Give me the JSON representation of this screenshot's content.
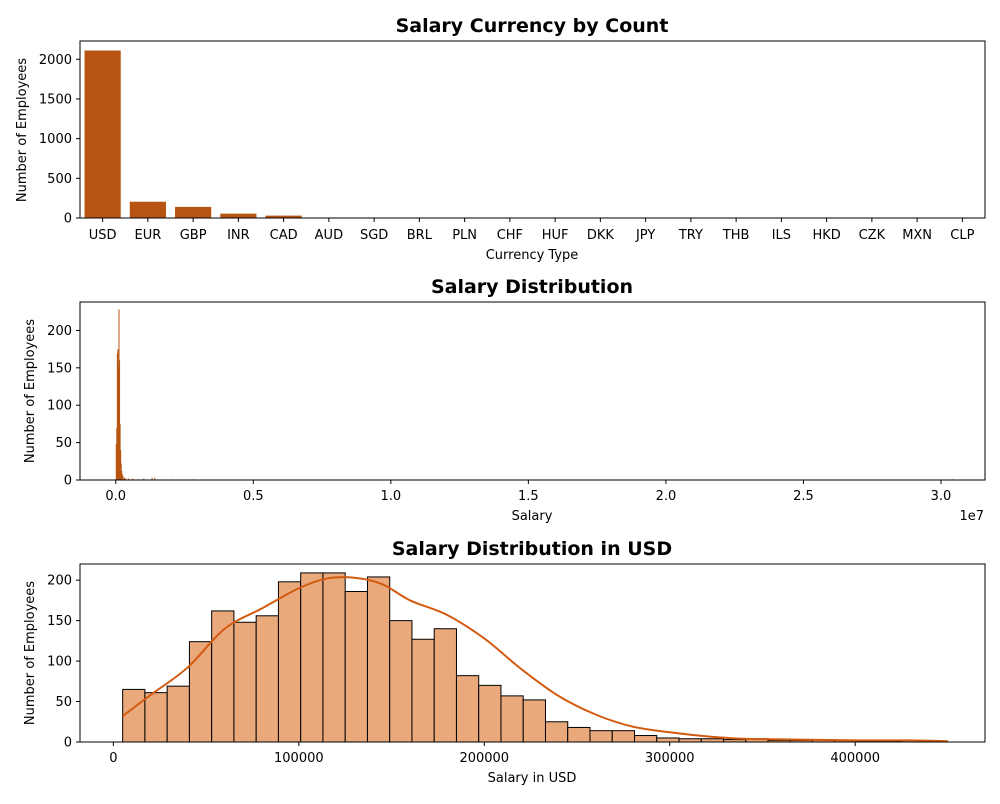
{
  "colors": {
    "bar": "#b85411",
    "hist_fill": "#e9a97b",
    "hist_edge": "#000000",
    "kde": "#d35b10",
    "axis": "#000000"
  },
  "chart_data": [
    {
      "type": "bar",
      "title": "Salary Currency by Count",
      "xlabel": "Currency Type",
      "ylabel": "Number of Employees",
      "categories": [
        "USD",
        "EUR",
        "GBP",
        "INR",
        "CAD",
        "AUD",
        "SGD",
        "BRL",
        "PLN",
        "CHF",
        "HUF",
        "DKK",
        "JPY",
        "TRY",
        "THB",
        "ILS",
        "HKD",
        "CZK",
        "MXN",
        "CLP"
      ],
      "values": [
        2110,
        205,
        140,
        55,
        30,
        5,
        4,
        3,
        3,
        2,
        2,
        2,
        1,
        1,
        1,
        1,
        1,
        1,
        1,
        1
      ],
      "ylim": [
        0,
        2230
      ],
      "yticks": [
        0,
        500,
        1000,
        1500,
        2000
      ],
      "grid": false
    },
    {
      "type": "bar",
      "title": "Salary Distribution",
      "xlabel": "Salary",
      "ylabel": "Number of Employees",
      "x_scale_label": "1e7",
      "xlim": [
        -1300000,
        31600000
      ],
      "ylim": [
        0,
        238
      ],
      "xticks": [
        0,
        5000000,
        10000000,
        15000000,
        20000000,
        25000000,
        30000000
      ],
      "xtick_labels": [
        "0.0",
        "0.5",
        "1.0",
        "1.5",
        "2.0",
        "2.5",
        "3.0"
      ],
      "yticks": [
        0,
        50,
        100,
        150,
        200
      ],
      "bins": [
        {
          "x": 0,
          "count": 48
        },
        {
          "x": 20000,
          "count": 70
        },
        {
          "x": 40000,
          "count": 170
        },
        {
          "x": 60000,
          "count": 175
        },
        {
          "x": 80000,
          "count": 150
        },
        {
          "x": 100000,
          "count": 228
        },
        {
          "x": 120000,
          "count": 160
        },
        {
          "x": 140000,
          "count": 75
        },
        {
          "x": 160000,
          "count": 40
        },
        {
          "x": 180000,
          "count": 22
        },
        {
          "x": 200000,
          "count": 12
        },
        {
          "x": 220000,
          "count": 8
        },
        {
          "x": 250000,
          "count": 5
        },
        {
          "x": 300000,
          "count": 3
        },
        {
          "x": 350000,
          "count": 2
        },
        {
          "x": 450000,
          "count": 2
        },
        {
          "x": 600000,
          "count": 2
        },
        {
          "x": 800000,
          "count": 1
        },
        {
          "x": 1000000,
          "count": 2
        },
        {
          "x": 1300000,
          "count": 3
        },
        {
          "x": 1400000,
          "count": 3
        },
        {
          "x": 2000000,
          "count": 1
        },
        {
          "x": 2800000,
          "count": 1
        },
        {
          "x": 4400000,
          "count": 1
        },
        {
          "x": 11000000,
          "count": 1
        },
        {
          "x": 30400000,
          "count": 1
        }
      ],
      "grid": false
    },
    {
      "type": "bar",
      "title": "Salary Distribution in USD",
      "xlabel": "Salary in USD",
      "ylabel": "Number of Employees",
      "bin_width": 12000,
      "bins_start": 5000,
      "counts": [
        65,
        61,
        69,
        124,
        162,
        148,
        156,
        198,
        209,
        209,
        186,
        204,
        150,
        127,
        140,
        82,
        70,
        57,
        52,
        25,
        18,
        14,
        14,
        8,
        5,
        4,
        4,
        3,
        4,
        2,
        2,
        3,
        2,
        1,
        1,
        0,
        0
      ],
      "kde": {
        "x": [
          5000,
          20000,
          40000,
          60000,
          80000,
          100000,
          115000,
          130000,
          145000,
          160000,
          180000,
          200000,
          220000,
          240000,
          260000,
          280000,
          300000,
          320000,
          340000,
          370000,
          400000,
          430000,
          450000
        ],
        "y": [
          32,
          58,
          92,
          140,
          165,
          190,
          202,
          203,
          195,
          175,
          157,
          128,
          90,
          57,
          34,
          19,
          12,
          7,
          4,
          3,
          2,
          2,
          1
        ]
      },
      "xlim": [
        -18000,
        470000
      ],
      "ylim": [
        0,
        220
      ],
      "xticks": [
        0,
        100000,
        200000,
        300000,
        400000
      ],
      "yticks": [
        0,
        50,
        100,
        150,
        200
      ],
      "grid": false
    }
  ]
}
